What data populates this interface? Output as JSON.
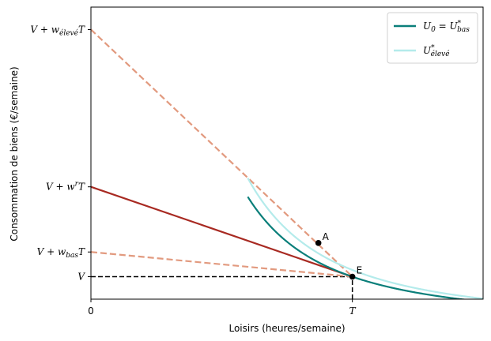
{
  "chart_data": {
    "type": "line",
    "title": "",
    "xlabel": "Loisirs (heures/semaine)",
    "ylabel": "Consommation de biens (€/semaine)",
    "xlim": [
      0,
      1.5
    ],
    "ylim": [
      -0.5,
      6.0
    ],
    "x_ticks": [
      {
        "value": 0,
        "label": "0"
      },
      {
        "value": 1,
        "label": "T"
      }
    ],
    "x_zero_label_below": "0",
    "y_ticks": [
      {
        "value": 5.5,
        "main": "V + w",
        "sub": "élevé",
        "tail": "T"
      },
      {
        "value": 2.0,
        "main": "V + w",
        "sup": "r",
        "tail": "T"
      },
      {
        "value": 0.55,
        "main": "V + w",
        "sub": "bas",
        "tail": "T"
      },
      {
        "value": 0.0,
        "main": "V",
        "sub": "",
        "tail": ""
      }
    ],
    "series": [
      {
        "name": "U0 = U*bas",
        "kind": "indifference",
        "k": 1.0,
        "color": "#0a7f7a"
      },
      {
        "name": "U*élevé",
        "kind": "indifference",
        "k": 1.15,
        "color": "#b4ebeb"
      }
    ],
    "lines": [
      {
        "kind": "budget-high",
        "x": [
          0,
          1
        ],
        "y": [
          5.5,
          0
        ],
        "color": "#e29a7f",
        "dashed": true
      },
      {
        "kind": "budget-low",
        "x": [
          0,
          1
        ],
        "y": [
          0.55,
          0
        ],
        "color": "#e29a7f",
        "dashed": true
      },
      {
        "kind": "budget-reservation",
        "x": [
          0,
          1
        ],
        "y": [
          2.0,
          0
        ],
        "color": "#a82a22",
        "dashed": false
      }
    ],
    "guides": [
      {
        "kind": "horizontal-V",
        "x": [
          0,
          1
        ],
        "y": [
          0,
          0
        ]
      },
      {
        "kind": "vertical-T",
        "x": [
          1,
          1
        ],
        "y": [
          -0.5,
          0
        ]
      }
    ],
    "points": [
      {
        "label": "A",
        "x": 0.87,
        "y": 0.75
      },
      {
        "label": "E",
        "x": 1.0,
        "y": 0.0
      }
    ],
    "legend": {
      "placement": "top-right",
      "entries": [
        {
          "main": "U",
          "sub": "0",
          "eq": " = U",
          "sup": "*",
          "sub2": "bas",
          "color": "#0a7f7a"
        },
        {
          "main": "U",
          "sup": "*",
          "sub2": "élevé",
          "color": "#b4ebeb"
        }
      ]
    },
    "grid": false
  }
}
